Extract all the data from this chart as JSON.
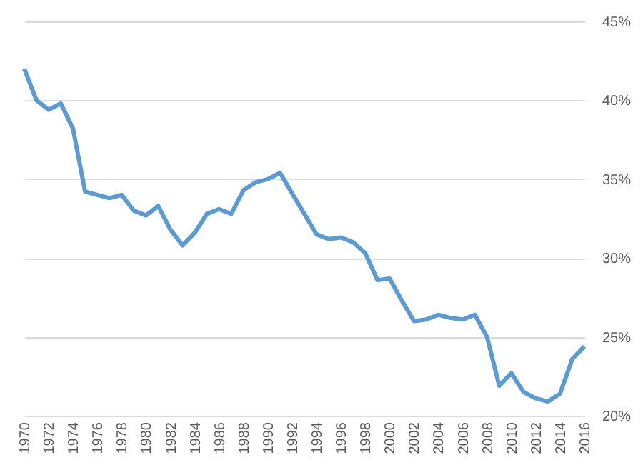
{
  "chart_data": {
    "type": "line",
    "x": [
      1970,
      1971,
      1972,
      1973,
      1974,
      1975,
      1976,
      1977,
      1978,
      1979,
      1980,
      1981,
      1982,
      1983,
      1984,
      1985,
      1986,
      1987,
      1988,
      1989,
      1990,
      1991,
      1992,
      1993,
      1994,
      1995,
      1996,
      1997,
      1998,
      1999,
      2000,
      2001,
      2002,
      2003,
      2004,
      2005,
      2006,
      2007,
      2008,
      2009,
      2010,
      2011,
      2012,
      2013,
      2014,
      2015,
      2016
    ],
    "series": [
      {
        "color": "#5b9bd5",
        "values": [
          42.0,
          40.0,
          39.4,
          39.8,
          38.2,
          34.2,
          34.0,
          33.8,
          34.0,
          33.0,
          32.7,
          33.3,
          31.8,
          30.8,
          31.6,
          32.8,
          33.1,
          32.8,
          34.3,
          34.8,
          35.0,
          35.4,
          34.1,
          32.8,
          31.5,
          31.2,
          31.3,
          31.0,
          30.3,
          28.6,
          28.7,
          27.3,
          26.0,
          26.1,
          26.4,
          26.2,
          26.1,
          26.4,
          25.0,
          21.9,
          22.7,
          21.5,
          21.1,
          20.9,
          21.4,
          23.6,
          24.4
        ]
      }
    ],
    "xlim": [
      1970,
      2016
    ],
    "xticks": [
      1970,
      1972,
      1974,
      1976,
      1978,
      1980,
      1982,
      1984,
      1986,
      1988,
      1990,
      1992,
      1994,
      1996,
      1998,
      2000,
      2002,
      2004,
      2006,
      2008,
      2010,
      2012,
      2014,
      2016
    ],
    "ylim": [
      20,
      45
    ],
    "yticks": [
      {
        "value": 20,
        "label": "20%"
      },
      {
        "value": 25,
        "label": "25%"
      },
      {
        "value": 30,
        "label": "30%"
      },
      {
        "value": 35,
        "label": "35%"
      },
      {
        "value": 40,
        "label": "40%"
      },
      {
        "value": 45,
        "label": "45%"
      }
    ],
    "grid": "y",
    "line_style": "solid"
  }
}
